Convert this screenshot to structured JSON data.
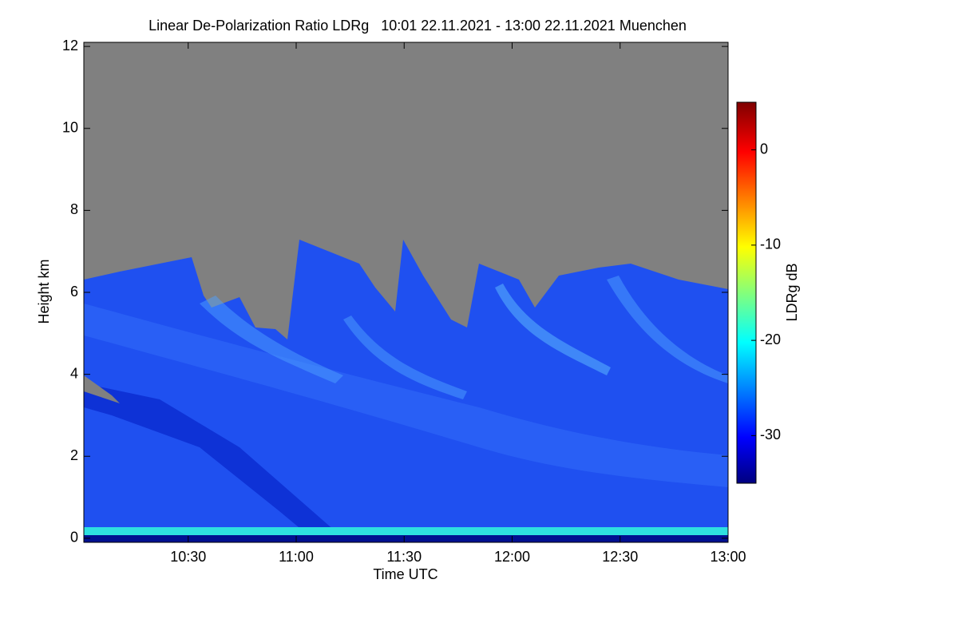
{
  "chart_data": {
    "type": "heatmap",
    "title": "Linear De-Polarization Ratio LDRg   10:01 22.11.2021 - 13:00 22.11.2021 Muenchen",
    "x_label": "Time UTC",
    "y_label": "Height km",
    "xlim": [
      "10:01",
      "13:00"
    ],
    "xticks": [
      "10:30",
      "11:00",
      "11:30",
      "12:00",
      "12:30",
      "13:00"
    ],
    "ylim": [
      -0.1,
      12.1
    ],
    "yticks": [
      0,
      2,
      4,
      6,
      8,
      10,
      12
    ],
    "colorbar": {
      "label": "LDRg dB",
      "clim": [
        -35,
        5
      ],
      "ticks": [
        0,
        -10,
        -20,
        -30
      ],
      "colormap": "jet"
    }
  }
}
